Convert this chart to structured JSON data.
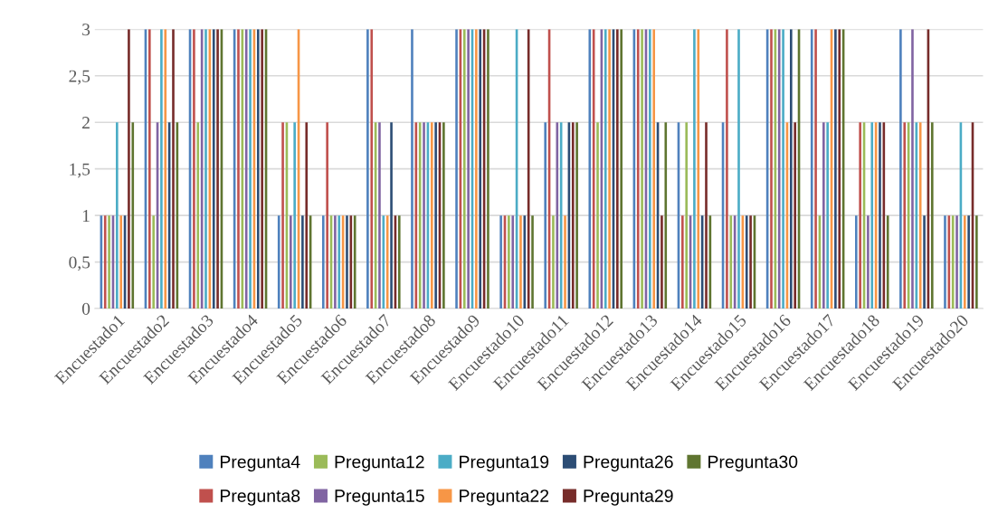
{
  "chart_data": {
    "type": "bar",
    "categories": [
      "Encuestado1",
      "Encuestado2",
      "Encuestado3",
      "Encuestado4",
      "Encuestado5",
      "Encuestado6",
      "Encuestado7",
      "Encuestado8",
      "Encuestado9",
      "Encuestado10",
      "Encuestado11",
      "Encuestado12",
      "Encuestado13",
      "Encuestado14",
      "Encuestado15",
      "Encuestado16",
      "Encuestado17",
      "Encuestado18",
      "Encuestado19",
      "Encuestado20"
    ],
    "series": [
      {
        "name": "Pregunta4",
        "color": "#4f81bd",
        "values": [
          1,
          3,
          3,
          3,
          1,
          1,
          3,
          3,
          3,
          1,
          2,
          3,
          3,
          2,
          2,
          3,
          3,
          1,
          3,
          1
        ]
      },
      {
        "name": "Pregunta8",
        "color": "#c0504d",
        "values": [
          1,
          3,
          3,
          3,
          2,
          2,
          3,
          2,
          3,
          1,
          3,
          3,
          3,
          1,
          3,
          3,
          3,
          2,
          2,
          1
        ]
      },
      {
        "name": "Pregunta12",
        "color": "#9bbb59",
        "values": [
          1,
          1,
          2,
          3,
          2,
          1,
          2,
          2,
          3,
          1,
          1,
          2,
          3,
          2,
          1,
          3,
          1,
          2,
          2,
          1
        ]
      },
      {
        "name": "Pregunta15",
        "color": "#8064a2",
        "values": [
          1,
          2,
          3,
          3,
          1,
          1,
          2,
          2,
          3,
          1,
          2,
          3,
          3,
          1,
          1,
          3,
          2,
          1,
          3,
          1
        ]
      },
      {
        "name": "Pregunta19",
        "color": "#4bacc6",
        "values": [
          2,
          3,
          3,
          3,
          2,
          1,
          1,
          2,
          3,
          3,
          2,
          3,
          3,
          3,
          3,
          3,
          2,
          2,
          2,
          2
        ]
      },
      {
        "name": "Pregunta22",
        "color": "#f79646",
        "values": [
          1,
          3,
          3,
          3,
          3,
          1,
          1,
          2,
          3,
          1,
          1,
          3,
          3,
          3,
          1,
          2,
          3,
          2,
          2,
          1
        ]
      },
      {
        "name": "Pregunta26",
        "color": "#2c4d75",
        "values": [
          1,
          2,
          3,
          3,
          1,
          1,
          2,
          2,
          3,
          1,
          2,
          3,
          2,
          1,
          1,
          3,
          3,
          2,
          1,
          1
        ]
      },
      {
        "name": "Pregunta29",
        "color": "#772c2a",
        "values": [
          3,
          3,
          3,
          3,
          2,
          1,
          1,
          2,
          3,
          3,
          2,
          3,
          1,
          2,
          1,
          2,
          3,
          2,
          3,
          2
        ]
      },
      {
        "name": "Pregunta30",
        "color": "#5f7530",
        "values": [
          2,
          2,
          3,
          3,
          1,
          1,
          1,
          2,
          3,
          1,
          2,
          3,
          2,
          1,
          1,
          3,
          3,
          1,
          2,
          1
        ]
      }
    ],
    "ylim": [
      0,
      3
    ],
    "yticks": [
      0,
      {
        "value": 0.5,
        "label": "0,5"
      },
      1,
      {
        "value": 1.5,
        "label": "1,5"
      },
      2,
      {
        "value": 2.5,
        "label": "2,5"
      },
      3
    ],
    "grid": "y",
    "legend": "bottom"
  }
}
